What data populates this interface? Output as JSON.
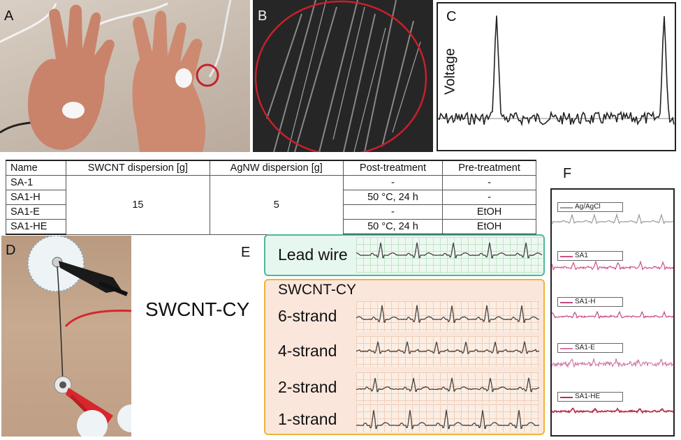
{
  "panels": {
    "a": "A",
    "b": "B",
    "c": "C",
    "d": "D",
    "e": "E",
    "f": "F"
  },
  "panel_c": {
    "ylabel": "Voltage"
  },
  "table": {
    "headers": [
      "Name",
      "SWCNT dispersion [g]",
      "AgNW dispersion [g]",
      "Post-treatment",
      "Pre-treatment"
    ],
    "rows": [
      {
        "name": "SA-1",
        "post": "-",
        "pre": "-"
      },
      {
        "name": "SA1-H",
        "post": "50 °C, 24 h",
        "pre": "-"
      },
      {
        "name": "SA1-E",
        "post": "-",
        "pre": "EtOH"
      },
      {
        "name": "SA1-HE",
        "post": "50 °C, 24 h",
        "pre": "EtOH"
      }
    ],
    "swcnt_value": "15",
    "agnw_value": "5"
  },
  "panel_d": {
    "callout": "SWCNT-CY"
  },
  "panel_e": {
    "lead_wire": "Lead wire",
    "group_title": "SWCNT-CY",
    "strands": [
      "6-strand",
      "4-strand",
      "2-strand",
      "1-strand"
    ]
  },
  "panel_f": {
    "legend": [
      {
        "label": "Ag/AgCl",
        "color": "#9a9a9a"
      },
      {
        "label": "SA1",
        "color": "#d0508a"
      },
      {
        "label": "SA1-H",
        "color": "#c04a80"
      },
      {
        "label": "SA1-E",
        "color": "#d27aa6"
      },
      {
        "label": "SA1-HE",
        "color": "#b8304f"
      }
    ]
  },
  "colors": {
    "lead_wire_border": "#4fb89a",
    "cy_border": "#efb33a",
    "red_circle": "#c8202a",
    "ecg_trace": "#444444"
  }
}
